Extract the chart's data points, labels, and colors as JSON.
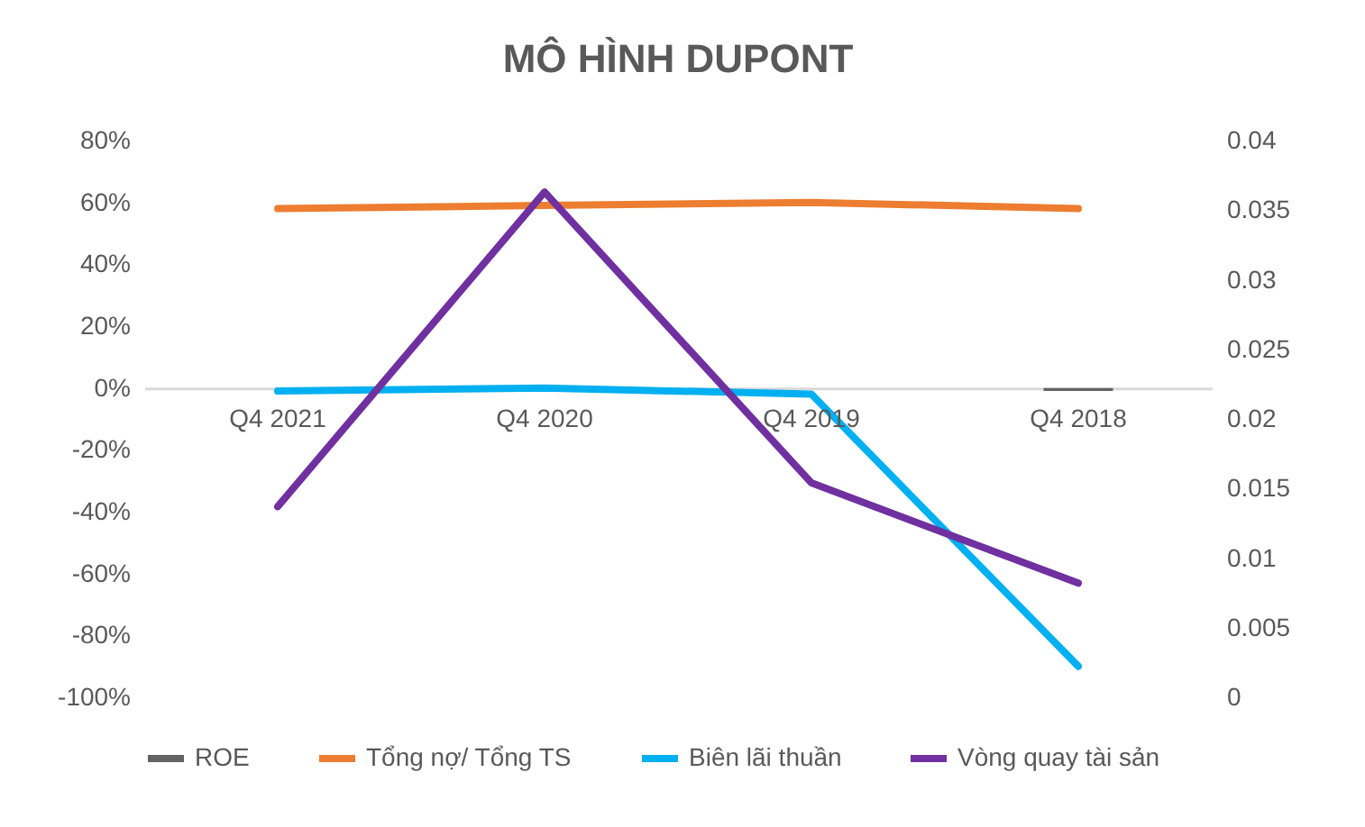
{
  "chart_data": {
    "type": "line",
    "title": "MÔ HÌNH DUPONT",
    "categories": [
      "Q4 2021",
      "Q4 2020",
      "Q4 2019",
      "Q4 2018"
    ],
    "series": [
      {
        "name": "ROE",
        "type": "bar",
        "color": "#636363",
        "values": [
          0,
          0,
          0,
          -1
        ]
      },
      {
        "name": "Tổng nợ/ Tổng TS",
        "color": "#ed7d31",
        "values": [
          58,
          59,
          60,
          58
        ]
      },
      {
        "name": "Biên lãi thuần",
        "color": "#00b0f0",
        "values": [
          -1,
          0,
          -2,
          -90
        ]
      },
      {
        "name": "Vòng quay tài sản",
        "color": "#7030a0",
        "axis": "y2",
        "values": [
          0.0137,
          0.0363,
          0.0154,
          0.0082
        ]
      }
    ],
    "ylim": [
      -100,
      80
    ],
    "yticks": [
      {
        "value": -100,
        "label": "-100%"
      },
      {
        "value": -80,
        "label": "-80%"
      },
      {
        "value": -60,
        "label": "-60%"
      },
      {
        "value": -40,
        "label": "-40%"
      },
      {
        "value": -20,
        "label": "-20%"
      },
      {
        "value": 0,
        "label": "0%"
      },
      {
        "value": 20,
        "label": "20%"
      },
      {
        "value": 40,
        "label": "40%"
      },
      {
        "value": 60,
        "label": "60%"
      },
      {
        "value": 80,
        "label": "80%"
      }
    ],
    "y2lim": [
      0,
      0.04
    ],
    "y2ticks": [
      0,
      0.005,
      0.01,
      0.015,
      0.02,
      0.025,
      0.03,
      0.035,
      0.04
    ],
    "grid": false,
    "legend": "bottom"
  }
}
